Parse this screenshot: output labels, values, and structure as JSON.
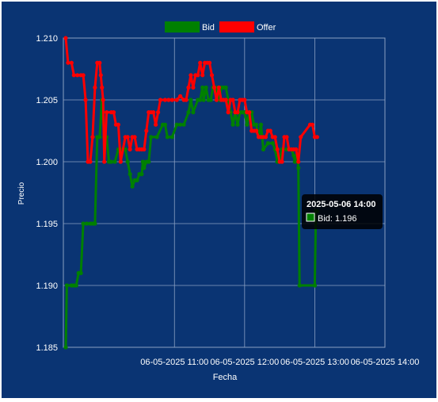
{
  "chart_data": {
    "type": "line",
    "xlabel": "Fecha",
    "ylabel": "Precio",
    "x_ticks": [
      "06-05-2025 11:00",
      "06-05-2025 12:00",
      "06-05-2025 13:00",
      "06-05-2025 14:00"
    ],
    "y_ticks": [
      "1.185",
      "1.190",
      "1.195",
      "1.200",
      "1.205",
      "1.210"
    ],
    "ylim": [
      1.185,
      1.21
    ],
    "xlim_minutes_after_10": [
      -35,
      240
    ],
    "grid": true,
    "legend_position": "top",
    "colors": {
      "background": "#0a3473",
      "bid": "#008000",
      "offer": "#ff0000",
      "grid": "#8a9fc2",
      "text": "#ffffff"
    },
    "series": [
      {
        "name": "Bid",
        "color": "#008000",
        "points": [
          [
            -33,
            1.185
          ],
          [
            -32,
            1.19
          ],
          [
            -28,
            1.19
          ],
          [
            -26,
            1.19
          ],
          [
            -24,
            1.19
          ],
          [
            -22,
            1.191
          ],
          [
            -20,
            1.191
          ],
          [
            -18,
            1.195
          ],
          [
            -15,
            1.195
          ],
          [
            -12,
            1.195
          ],
          [
            -10,
            1.195
          ],
          [
            -8,
            1.195
          ],
          [
            -6,
            1.202
          ],
          [
            -4,
            1.202
          ],
          [
            -2,
            1.205
          ],
          [
            0,
            1.202
          ],
          [
            2,
            1.202
          ],
          [
            4,
            1.2
          ],
          [
            6,
            1.2
          ],
          [
            9,
            1.2
          ],
          [
            12,
            1.201
          ],
          [
            15,
            1.201
          ],
          [
            18,
            1.201
          ],
          [
            20,
            1.2
          ],
          [
            22,
            1.199
          ],
          [
            24,
            1.198
          ],
          [
            26,
            1.1985
          ],
          [
            28,
            1.1985
          ],
          [
            30,
            1.199
          ],
          [
            32,
            1.199
          ],
          [
            33,
            1.2
          ],
          [
            34,
            1.1995
          ],
          [
            36,
            1.2
          ],
          [
            38,
            1.2
          ],
          [
            40,
            1.202
          ],
          [
            45,
            1.202
          ],
          [
            50,
            1.203
          ],
          [
            52,
            1.203
          ],
          [
            54,
            1.202
          ],
          [
            58,
            1.202
          ],
          [
            62,
            1.203
          ],
          [
            65,
            1.203
          ],
          [
            68,
            1.203
          ],
          [
            72,
            1.204
          ],
          [
            74,
            1.205
          ],
          [
            76,
            1.204
          ],
          [
            80,
            1.205
          ],
          [
            82,
            1.205
          ],
          [
            84,
            1.206
          ],
          [
            85,
            1.205
          ],
          [
            87,
            1.206
          ],
          [
            89,
            1.205
          ],
          [
            91,
            1.205
          ],
          [
            93,
            1.206
          ],
          [
            96,
            1.206
          ],
          [
            98,
            1.205
          ],
          [
            100,
            1.206
          ],
          [
            102,
            1.206
          ],
          [
            104,
            1.206
          ],
          [
            106,
            1.205
          ],
          [
            108,
            1.204
          ],
          [
            110,
            1.203
          ],
          [
            112,
            1.204
          ],
          [
            114,
            1.203
          ],
          [
            116,
            1.204
          ],
          [
            118,
            1.204
          ],
          [
            120,
            1.204
          ],
          [
            122,
            1.203
          ],
          [
            124,
            1.204
          ],
          [
            126,
            1.204
          ],
          [
            128,
            1.203
          ],
          [
            130,
            1.203
          ],
          [
            132,
            1.202
          ],
          [
            134,
            1.203
          ],
          [
            136,
            1.201
          ],
          [
            140,
            1.2015
          ],
          [
            144,
            1.2015
          ],
          [
            146,
            1.201
          ],
          [
            148,
            1.2
          ],
          [
            150,
            1.2
          ],
          [
            152,
            1.201
          ],
          [
            156,
            1.201
          ],
          [
            158,
            1.201
          ],
          [
            160,
            1.201
          ],
          [
            162,
            1.2005
          ],
          [
            163,
            1.2
          ],
          [
            165,
            1.2005
          ],
          [
            166,
            1.1995
          ],
          [
            167,
            1.19
          ],
          [
            180,
            1.19
          ],
          [
            181,
            1.196
          ],
          [
            182,
            1.196
          ]
        ]
      },
      {
        "name": "Offer",
        "color": "#ff0000",
        "points": [
          [
            -33,
            1.21
          ],
          [
            -31,
            1.208
          ],
          [
            -28,
            1.208
          ],
          [
            -26,
            1.207
          ],
          [
            -23,
            1.207
          ],
          [
            -20,
            1.207
          ],
          [
            -18,
            1.207
          ],
          [
            -16,
            1.205
          ],
          [
            -14,
            1.2
          ],
          [
            -12,
            1.2
          ],
          [
            -10,
            1.202
          ],
          [
            -8,
            1.206
          ],
          [
            -6,
            1.208
          ],
          [
            -4,
            1.208
          ],
          [
            -3,
            1.207
          ],
          [
            -2,
            1.206
          ],
          [
            -1,
            1.205
          ],
          [
            0,
            1.2
          ],
          [
            2,
            1.204
          ],
          [
            6,
            1.204
          ],
          [
            8,
            1.204
          ],
          [
            10,
            1.203
          ],
          [
            12,
            1.203
          ],
          [
            14,
            1.2
          ],
          [
            18,
            1.202
          ],
          [
            20,
            1.202
          ],
          [
            22,
            1.201
          ],
          [
            24,
            1.202
          ],
          [
            26,
            1.202
          ],
          [
            28,
            1.201
          ],
          [
            30,
            1.201
          ],
          [
            32,
            1.201
          ],
          [
            34,
            1.201
          ],
          [
            36,
            1.2025
          ],
          [
            38,
            1.204
          ],
          [
            40,
            1.204
          ],
          [
            42,
            1.204
          ],
          [
            44,
            1.203
          ],
          [
            46,
            1.204
          ],
          [
            48,
            1.205
          ],
          [
            52,
            1.205
          ],
          [
            55,
            1.205
          ],
          [
            58,
            1.205
          ],
          [
            62,
            1.205
          ],
          [
            65,
            1.2053
          ],
          [
            68,
            1.205
          ],
          [
            70,
            1.205
          ],
          [
            72,
            1.206
          ],
          [
            74,
            1.207
          ],
          [
            76,
            1.206
          ],
          [
            78,
            1.207
          ],
          [
            80,
            1.207
          ],
          [
            82,
            1.208
          ],
          [
            84,
            1.207
          ],
          [
            86,
            1.208
          ],
          [
            88,
            1.208
          ],
          [
            90,
            1.208
          ],
          [
            92,
            1.207
          ],
          [
            94,
            1.206
          ],
          [
            96,
            1.205
          ],
          [
            98,
            1.206
          ],
          [
            100,
            1.205
          ],
          [
            102,
            1.205
          ],
          [
            104,
            1.205
          ],
          [
            106,
            1.204
          ],
          [
            108,
            1.205
          ],
          [
            110,
            1.205
          ],
          [
            112,
            1.204
          ],
          [
            114,
            1.204
          ],
          [
            116,
            1.205
          ],
          [
            118,
            1.205
          ],
          [
            120,
            1.205
          ],
          [
            122,
            1.204
          ],
          [
            124,
            1.204
          ],
          [
            126,
            1.2025
          ],
          [
            128,
            1.2025
          ],
          [
            130,
            1.2025
          ],
          [
            132,
            1.202
          ],
          [
            134,
            1.202
          ],
          [
            136,
            1.202
          ],
          [
            138,
            1.202
          ],
          [
            140,
            1.2025
          ],
          [
            142,
            1.2025
          ],
          [
            144,
            1.202
          ],
          [
            146,
            1.202
          ],
          [
            148,
            1.201
          ],
          [
            150,
            1.2
          ],
          [
            152,
            1.2
          ],
          [
            154,
            1.202
          ],
          [
            156,
            1.202
          ],
          [
            158,
            1.201
          ],
          [
            160,
            1.201
          ],
          [
            162,
            1.201
          ],
          [
            164,
            1.201
          ],
          [
            166,
            1.2
          ],
          [
            168,
            1.202
          ],
          [
            176,
            1.203
          ],
          [
            178,
            1.203
          ],
          [
            180,
            1.202
          ],
          [
            182,
            1.202
          ]
        ]
      }
    ],
    "tooltip": {
      "title": "2025-05-06 14:00",
      "label": "Bid: 1.196"
    }
  }
}
